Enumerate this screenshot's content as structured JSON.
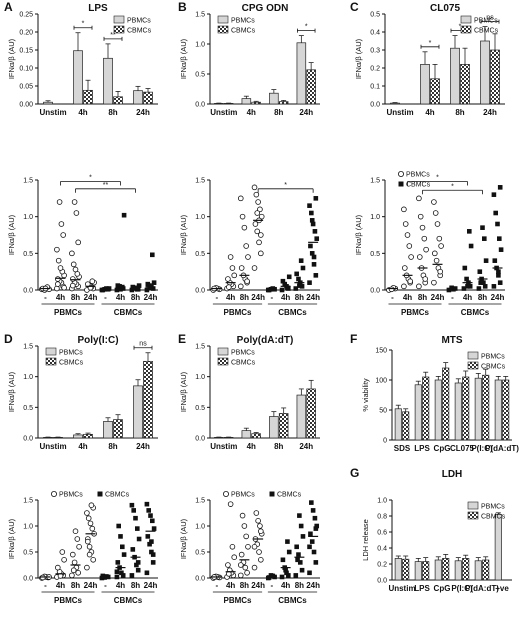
{
  "colors": {
    "pbmc_fill": "#d6d6d6",
    "cbmc_pattern": "checker",
    "axis": "#111111"
  },
  "chart_data": [
    {
      "id": "A",
      "letter": "A",
      "title": "LPS",
      "type": "bar",
      "ylabel": "IFNα/β (AU)",
      "ylim": [
        0,
        0.25
      ],
      "yticks": [
        "0.00",
        "0.05",
        "0.10",
        "0.15",
        "0.20",
        "0.25"
      ],
      "categories": [
        "Unstim",
        "4h",
        "8h",
        "24h"
      ],
      "series": [
        {
          "name": "PBMCs",
          "values": [
            0.005,
            0.148,
            0.127,
            0.037
          ],
          "err": [
            0.004,
            0.05,
            0.04,
            0.012
          ]
        },
        {
          "name": "CBMCs",
          "values": [
            null,
            0.038,
            0.02,
            0.033
          ],
          "err": [
            null,
            0.028,
            0.015,
            0.01
          ]
        }
      ],
      "sig": [
        {
          "cat": 1,
          "text": "*"
        },
        {
          "cat": 2,
          "text": "**"
        }
      ],
      "legend_position": "top-right"
    },
    {
      "id": "B",
      "letter": "B",
      "title": "CPG ODN",
      "type": "bar",
      "ylabel": "IFNα/β (AU)",
      "ylim": [
        0,
        1.5
      ],
      "yticks": [
        "0.0",
        "0.5",
        "1.0",
        "1.5"
      ],
      "categories": [
        "Unstim",
        "4h",
        "8h",
        "24h"
      ],
      "series": [
        {
          "name": "PBMCs",
          "values": [
            0.01,
            0.09,
            0.18,
            1.02
          ],
          "err": [
            0.005,
            0.04,
            0.06,
            0.12
          ]
        },
        {
          "name": "CBMCs",
          "values": [
            0.01,
            0.03,
            0.04,
            0.57
          ],
          "err": [
            0.005,
            0.015,
            0.02,
            0.12
          ]
        }
      ],
      "sig": [
        {
          "cat": 3,
          "text": "*"
        }
      ],
      "legend_position": "top-left"
    },
    {
      "id": "C",
      "letter": "C",
      "title": "CL075",
      "type": "bar",
      "ylabel": "IFNα/β (AU)",
      "ylim": [
        0,
        0.5
      ],
      "yticks": [
        "0.0",
        "0.1",
        "0.2",
        "0.3",
        "0.4",
        "0.5"
      ],
      "categories": [
        "Unstim",
        "4h",
        "8h",
        "24h"
      ],
      "series": [
        {
          "name": "PBMCs",
          "values": [
            0.005,
            0.22,
            0.31,
            0.35
          ],
          "err": [
            0.003,
            0.07,
            0.07,
            0.08
          ]
        },
        {
          "name": "CBMCs",
          "values": [
            null,
            0.14,
            0.22,
            0.3
          ],
          "err": [
            null,
            0.08,
            0.09,
            0.09
          ]
        }
      ],
      "sig": [
        {
          "cat": 1,
          "text": "*"
        },
        {
          "cat": 2,
          "text": "*"
        },
        {
          "cat": 3,
          "text": "ns"
        }
      ],
      "legend_position": "top-right"
    },
    {
      "id": "A2",
      "type": "scatter",
      "ylabel": "IFNα/β (AU)",
      "ylim": [
        0,
        1.5
      ],
      "yticks": [
        "0.0",
        "0.5",
        "1.0",
        "1.5"
      ],
      "group_labels": [
        "PBMCs",
        "CBMCs"
      ],
      "categories": [
        "-",
        "4h",
        "8h",
        "24h",
        "-",
        "4h",
        "8h",
        "24h"
      ],
      "cols": [
        {
          "m": 0.02,
          "pts": [
            0.01,
            0.02,
            0.03,
            0.0,
            0.02,
            0.01,
            0.04,
            0.02
          ]
        },
        {
          "m": 0.16,
          "pts": [
            0.02,
            0.05,
            0.1,
            0.12,
            0.15,
            0.2,
            0.25,
            0.3,
            0.4,
            0.55,
            0.75,
            0.9,
            1.2,
            0.08,
            0.03
          ]
        },
        {
          "m": 0.14,
          "pts": [
            0.02,
            0.05,
            0.08,
            0.1,
            0.15,
            0.18,
            0.22,
            0.28,
            0.35,
            0.5,
            0.65,
            1.05,
            1.2,
            0.06
          ]
        },
        {
          "m": 0.05,
          "pts": [
            0.0,
            0.02,
            0.04,
            0.06,
            0.08,
            0.1,
            0.12,
            0.03
          ]
        },
        {
          "m": 0.01,
          "pts": [
            0.0,
            0.01,
            0.02,
            0.01,
            0.0,
            0.02
          ]
        },
        {
          "m": 0.03,
          "pts": [
            0.0,
            0.02,
            0.03,
            0.05,
            0.06,
            1.02,
            0.04,
            0.01
          ]
        },
        {
          "m": 0.02,
          "pts": [
            0.0,
            0.01,
            0.02,
            0.03,
            0.04,
            0.06,
            0.01
          ]
        },
        {
          "m": 0.04,
          "pts": [
            0.0,
            0.02,
            0.04,
            0.06,
            0.08,
            0.1,
            0.48,
            0.03
          ]
        }
      ],
      "brackets": [
        {
          "from": 1,
          "to": 5,
          "text": "*",
          "y": 1.48
        },
        {
          "from": 2,
          "to": 6,
          "text": "**",
          "y": 1.38
        }
      ]
    },
    {
      "id": "B2",
      "type": "scatter",
      "ylabel": "IFNα/β (AU)",
      "ylim": [
        0,
        1.5
      ],
      "yticks": [
        "0.0",
        "0.5",
        "1.0",
        "1.5"
      ],
      "group_labels": [
        "PBMCs",
        "CBMCs"
      ],
      "categories": [
        "-",
        "4h",
        "8h",
        "24h",
        "-",
        "4h",
        "8h",
        "24h"
      ],
      "cols": [
        {
          "m": 0.02,
          "pts": [
            0.0,
            0.01,
            0.02,
            0.03,
            0.02
          ]
        },
        {
          "m": 0.1,
          "pts": [
            0.02,
            0.05,
            0.08,
            0.1,
            0.15,
            0.2,
            0.3,
            0.45,
            0.04
          ]
        },
        {
          "m": 0.2,
          "pts": [
            0.05,
            0.1,
            0.15,
            0.2,
            0.3,
            0.45,
            0.6,
            0.85,
            1.0,
            1.25,
            0.12
          ]
        },
        {
          "m": 0.95,
          "pts": [
            0.3,
            0.5,
            0.65,
            0.8,
            0.9,
            1.0,
            1.1,
            1.2,
            1.3,
            1.4,
            0.75,
            0.95,
            1.05
          ]
        },
        {
          "m": 0.01,
          "pts": [
            0.0,
            0.01,
            0.02,
            0.01,
            0.0
          ]
        },
        {
          "m": 0.05,
          "pts": [
            0.0,
            0.02,
            0.05,
            0.08,
            0.12,
            0.18,
            0.03
          ]
        },
        {
          "m": 0.1,
          "pts": [
            0.02,
            0.05,
            0.1,
            0.15,
            0.22,
            0.3,
            0.4,
            0.06
          ]
        },
        {
          "m": 0.65,
          "pts": [
            0.1,
            0.2,
            0.35,
            0.5,
            0.6,
            0.7,
            0.8,
            0.9,
            1.05,
            1.15,
            1.25,
            0.45,
            0.95
          ]
        }
      ],
      "brackets": [
        {
          "from": 3,
          "to": 7,
          "text": "*",
          "y": 1.38
        }
      ]
    },
    {
      "id": "C2",
      "type": "scatter",
      "ylabel": "IFNα/β (AU)",
      "ylim": [
        0,
        1.5
      ],
      "yticks": [
        "0.0",
        "0.5",
        "1.0",
        "1.5"
      ],
      "legend": [
        "PBMCs",
        "CBMCs"
      ],
      "group_labels": [
        "PBMCs",
        "CBMCs"
      ],
      "categories": [
        "-",
        "4h",
        "8h",
        "24h",
        "-",
        "4h",
        "8h",
        "24h"
      ],
      "cols": [
        {
          "m": 0.02,
          "pts": [
            0.0,
            0.02,
            0.03,
            0.01
          ]
        },
        {
          "m": 0.2,
          "pts": [
            0.05,
            0.1,
            0.15,
            0.2,
            0.3,
            0.45,
            0.6,
            0.75,
            0.9,
            1.1,
            0.12
          ]
        },
        {
          "m": 0.3,
          "pts": [
            0.05,
            0.1,
            0.2,
            0.3,
            0.45,
            0.55,
            0.7,
            0.85,
            1.0,
            1.25,
            0.15
          ]
        },
        {
          "m": 0.35,
          "pts": [
            0.1,
            0.2,
            0.3,
            0.4,
            0.5,
            0.6,
            0.7,
            0.9,
            1.05,
            1.2,
            0.25
          ]
        },
        {
          "m": 0.02,
          "pts": [
            0.0,
            0.02,
            0.01,
            0.03
          ]
        },
        {
          "m": 0.1,
          "pts": [
            0.02,
            0.05,
            0.1,
            0.15,
            0.3,
            0.6,
            0.8,
            0.05
          ]
        },
        {
          "m": 0.15,
          "pts": [
            0.02,
            0.05,
            0.1,
            0.15,
            0.25,
            0.4,
            0.7,
            0.85,
            0.1
          ]
        },
        {
          "m": 0.3,
          "pts": [
            0.05,
            0.1,
            0.2,
            0.3,
            0.4,
            0.55,
            0.7,
            0.9,
            1.05,
            1.3,
            1.4,
            0.25
          ]
        }
      ],
      "brackets": [
        {
          "from": 1,
          "to": 5,
          "text": "*",
          "y": 1.48
        },
        {
          "from": 2,
          "to": 6,
          "text": "*",
          "y": 1.36
        }
      ]
    },
    {
      "id": "D",
      "letter": "D",
      "title": "Poly(I:C)",
      "type": "bar",
      "ylabel": "IFNα/β (AU)",
      "ylim": [
        0,
        1.5
      ],
      "yticks": [
        "0.0",
        "0.5",
        "1.0",
        "1.5"
      ],
      "categories": [
        "Unstim",
        "4h",
        "8h",
        "24h"
      ],
      "series": [
        {
          "name": "PBMCs",
          "values": [
            0.01,
            0.05,
            0.27,
            0.85
          ],
          "err": [
            0.005,
            0.02,
            0.06,
            0.1
          ]
        },
        {
          "name": "CBMCs",
          "values": [
            0.01,
            0.06,
            0.3,
            1.25
          ],
          "err": [
            0.005,
            0.02,
            0.08,
            0.14
          ]
        }
      ],
      "sig": [
        {
          "cat": 3,
          "text": "ns"
        }
      ],
      "legend_position": "top-left"
    },
    {
      "id": "E",
      "letter": "E",
      "title": "Poly(dA:dT)",
      "type": "bar",
      "ylabel": "IFNα/β (AU)",
      "ylim": [
        0,
        1.5
      ],
      "yticks": [
        "0.0",
        "0.5",
        "1.0",
        "1.5"
      ],
      "categories": [
        "Unstim",
        "4h",
        "8h",
        "24h"
      ],
      "series": [
        {
          "name": "PBMCs",
          "values": [
            0.01,
            0.12,
            0.35,
            0.7
          ],
          "err": [
            0.005,
            0.04,
            0.08,
            0.1
          ]
        },
        {
          "name": "CBMCs",
          "values": [
            0.01,
            0.07,
            0.4,
            0.8
          ],
          "err": [
            0.005,
            0.02,
            0.09,
            0.14
          ]
        }
      ],
      "sig": [],
      "legend_position": "top-left"
    },
    {
      "id": "D2",
      "type": "scatter",
      "ylabel": "IFNα/β (AU)",
      "ylim": [
        0,
        1.5
      ],
      "yticks": [
        "0.0",
        "0.5",
        "1.0",
        "1.5"
      ],
      "legend": [
        "PBMCs",
        "CBMCs"
      ],
      "group_labels": [
        "PBMCs",
        "CBMCs"
      ],
      "categories": [
        "-",
        "4h",
        "8h",
        "24h",
        "-",
        "4h",
        "8h",
        "24h"
      ],
      "cols": [
        {
          "m": 0.02,
          "pts": [
            0.0,
            0.01,
            0.02,
            0.03,
            0.01,
            0.02
          ]
        },
        {
          "m": 0.08,
          "pts": [
            0.02,
            0.05,
            0.08,
            0.12,
            0.2,
            0.35,
            0.5,
            0.04
          ]
        },
        {
          "m": 0.25,
          "pts": [
            0.05,
            0.1,
            0.2,
            0.3,
            0.45,
            0.6,
            0.75,
            0.9,
            0.15
          ]
        },
        {
          "m": 0.85,
          "pts": [
            0.2,
            0.35,
            0.5,
            0.6,
            0.75,
            0.85,
            0.95,
            1.05,
            1.15,
            1.25,
            1.35,
            1.4,
            0.45,
            0.7
          ]
        },
        {
          "m": 0.02,
          "pts": [
            0.0,
            0.02,
            0.03,
            0.01,
            0.04
          ]
        },
        {
          "m": 0.2,
          "pts": [
            0.02,
            0.05,
            0.1,
            0.2,
            0.3,
            0.45,
            0.6,
            0.8,
            1.0,
            0.12
          ]
        },
        {
          "m": 0.4,
          "pts": [
            0.05,
            0.15,
            0.25,
            0.4,
            0.55,
            0.75,
            0.95,
            1.15,
            1.3,
            1.4,
            0.3
          ]
        },
        {
          "m": 0.9,
          "pts": [
            0.1,
            0.3,
            0.5,
            0.65,
            0.8,
            0.95,
            1.1,
            1.2,
            1.3,
            1.42,
            0.45,
            0.7
          ]
        }
      ],
      "brackets": []
    },
    {
      "id": "E2",
      "type": "scatter",
      "ylabel": "IFNα/β (AU)",
      "ylim": [
        0,
        1.5
      ],
      "yticks": [
        "0.0",
        "0.5",
        "1.0",
        "1.5"
      ],
      "legend": [
        "PBMCs",
        "CBMCs"
      ],
      "group_labels": [
        "PBMCs",
        "CBMCs"
      ],
      "categories": [
        "-",
        "4h",
        "8h",
        "24h",
        "-",
        "4h",
        "8h",
        "24h"
      ],
      "cols": [
        {
          "m": 0.02,
          "pts": [
            0.0,
            0.01,
            0.02,
            0.03,
            0.02
          ]
        },
        {
          "m": 0.12,
          "pts": [
            0.02,
            0.05,
            0.1,
            0.15,
            0.25,
            0.4,
            0.6,
            1.42,
            0.08
          ]
        },
        {
          "m": 0.35,
          "pts": [
            0.05,
            0.1,
            0.2,
            0.3,
            0.45,
            0.6,
            0.8,
            1.0,
            1.2,
            0.25
          ]
        },
        {
          "m": 0.75,
          "pts": [
            0.2,
            0.35,
            0.5,
            0.65,
            0.75,
            0.85,
            1.0,
            1.1,
            1.25,
            0.6,
            0.9
          ]
        },
        {
          "m": 0.03,
          "pts": [
            0.0,
            0.02,
            0.04,
            0.05,
            0.01
          ]
        },
        {
          "m": 0.2,
          "pts": [
            0.02,
            0.05,
            0.1,
            0.2,
            0.35,
            0.5,
            0.7,
            0.15
          ]
        },
        {
          "m": 0.4,
          "pts": [
            0.05,
            0.15,
            0.3,
            0.45,
            0.6,
            0.8,
            1.0,
            1.2,
            0.35
          ]
        },
        {
          "m": 0.8,
          "pts": [
            0.1,
            0.3,
            0.5,
            0.7,
            0.85,
            1.0,
            1.15,
            1.3,
            1.45,
            0.6,
            0.95
          ]
        }
      ],
      "brackets": []
    },
    {
      "id": "F",
      "letter": "F",
      "title": "MTS",
      "type": "bar",
      "ylabel": "% viability",
      "ylim": [
        0,
        150
      ],
      "yticks": [
        "0",
        "50",
        "100",
        "150"
      ],
      "categories": [
        "SDS",
        "LPS",
        "CpG",
        "CL075",
        "P(I:C)",
        "P(dA:dT)"
      ],
      "series": [
        {
          "name": "PBMCs",
          "values": [
            52,
            92,
            100,
            95,
            103,
            100
          ],
          "err": [
            6,
            6,
            6,
            7,
            8,
            6
          ]
        },
        {
          "name": "CBMCs",
          "values": [
            47,
            105,
            120,
            105,
            108,
            100
          ],
          "err": [
            5,
            8,
            9,
            10,
            10,
            6
          ]
        }
      ],
      "sig": [],
      "legend_position": "top-right"
    },
    {
      "id": "G",
      "letter": "G",
      "title": "LDH",
      "type": "bar",
      "ylabel": "LDH release",
      "ylim": [
        0,
        1.0
      ],
      "yticks": [
        "0.0",
        "0.2",
        "0.4",
        "0.6",
        "0.8",
        "1.0"
      ],
      "categories": [
        "Unstim",
        "LPS",
        "CpG",
        "P(I:C)",
        "P(dA:dT)",
        "+ve"
      ],
      "series": [
        {
          "name": "PBMCs",
          "values": [
            0.27,
            0.23,
            0.25,
            0.24,
            0.24,
            0.82
          ],
          "err": [
            0.03,
            0.04,
            0.04,
            0.04,
            0.04,
            0.02
          ]
        },
        {
          "name": "CBMCs",
          "values": [
            0.26,
            0.23,
            0.27,
            0.27,
            0.25,
            null
          ],
          "err": [
            0.04,
            0.05,
            0.05,
            0.04,
            0.04,
            null
          ]
        }
      ],
      "sig": [],
      "legend_position": "top-right"
    }
  ]
}
